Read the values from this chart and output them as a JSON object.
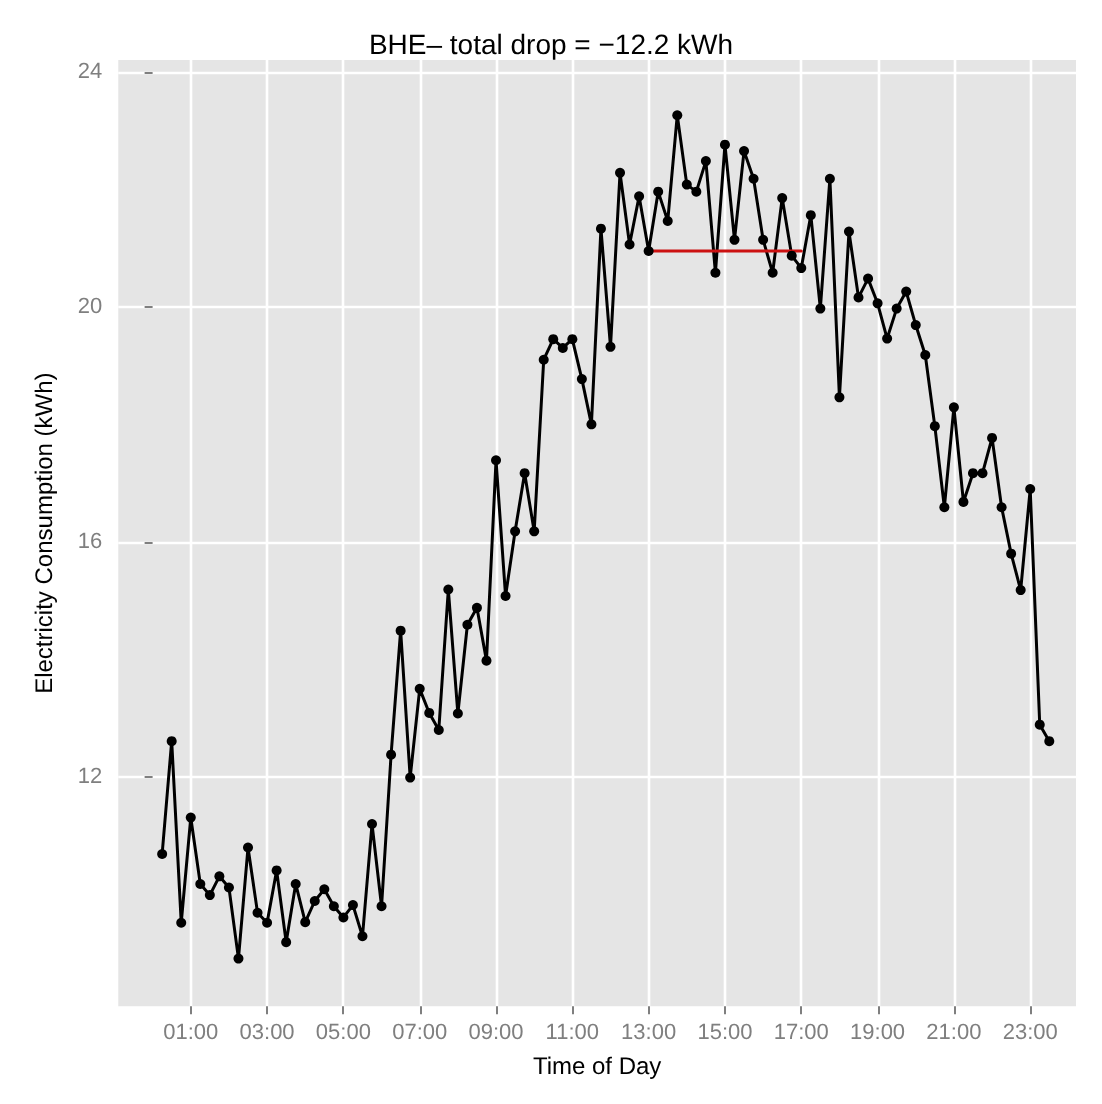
{
  "chart_data": {
    "type": "line",
    "title": "BHE– total drop = −12.2 kWh",
    "xlabel": "Time of Day",
    "ylabel": "Electricity Consumption (kWh)",
    "xlim": [
      -0.9,
      24.2
    ],
    "ylim": [
      8.1,
      24.2
    ],
    "xticks": [
      {
        "value": 1,
        "label": "01:00"
      },
      {
        "value": 3,
        "label": "03:00"
      },
      {
        "value": 5,
        "label": "05:00"
      },
      {
        "value": 7,
        "label": "07:00"
      },
      {
        "value": 9,
        "label": "09:00"
      },
      {
        "value": 11,
        "label": "11:00"
      },
      {
        "value": 13,
        "label": "13:00"
      },
      {
        "value": 15,
        "label": "15:00"
      },
      {
        "value": 17,
        "label": "17:00"
      },
      {
        "value": 19,
        "label": "19:00"
      },
      {
        "value": 21,
        "label": "21:00"
      },
      {
        "value": 23,
        "label": "23:00"
      }
    ],
    "yticks": [
      12,
      16,
      20,
      24
    ],
    "grid": true,
    "marker": "circle",
    "line_style": "solid",
    "series": [
      {
        "color": "#000000",
        "x": [
          0.25,
          0.5,
          0.75,
          1,
          1.25,
          1.5,
          1.75,
          2,
          2.25,
          2.5,
          2.75,
          3,
          3.25,
          3.5,
          3.75,
          4,
          4.25,
          4.5,
          4.75,
          5,
          5.25,
          5.5,
          5.75,
          6,
          6.25,
          6.5,
          6.75,
          7,
          7.25,
          7.5,
          7.75,
          8,
          8.25,
          8.5,
          8.75,
          9,
          9.25,
          9.5,
          9.75,
          10,
          10.25,
          10.5,
          10.75,
          11,
          11.25,
          11.5,
          11.75,
          12,
          12.25,
          12.5,
          12.75,
          13,
          13.25,
          13.5,
          13.75,
          14,
          14.25,
          14.5,
          14.75,
          15,
          15.25,
          15.5,
          15.75,
          16,
          16.25,
          16.5,
          16.75,
          17,
          17.25,
          17.5,
          17.75,
          18,
          18.25,
          18.5,
          18.75,
          19,
          19.25,
          19.5,
          19.75,
          20,
          20.25,
          20.5,
          20.75,
          21,
          21.25,
          21.5,
          21.75,
          22,
          22.25,
          22.5,
          22.75,
          23,
          23.25,
          23.5
        ],
        "values": [
          10.69,
          12.61,
          9.52,
          11.31,
          10.18,
          9.99,
          10.31,
          10.12,
          8.91,
          10.8,
          9.69,
          9.52,
          10.41,
          9.19,
          10.18,
          9.53,
          9.89,
          10.09,
          9.8,
          9.61,
          9.82,
          9.29,
          11.2,
          9.8,
          12.38,
          14.49,
          11.99,
          13.5,
          13.09,
          12.8,
          15.19,
          13.08,
          14.59,
          14.88,
          13.98,
          17.39,
          15.08,
          16.18,
          17.17,
          16.18,
          19.1,
          19.45,
          19.3,
          19.45,
          18.77,
          18.0,
          21.33,
          19.32,
          22.28,
          21.06,
          21.88,
          20.95,
          21.96,
          21.46,
          23.26,
          22.08,
          21.96,
          22.48,
          20.58,
          22.76,
          21.14,
          22.65,
          22.18,
          21.14,
          20.58,
          21.85,
          20.87,
          20.66,
          21.56,
          19.97,
          22.18,
          18.46,
          21.28,
          20.16,
          20.48,
          20.06,
          19.46,
          19.97,
          20.26,
          19.69,
          19.18,
          17.97,
          16.59,
          18.29,
          16.68,
          17.17,
          17.17,
          17.77,
          16.59,
          15.8,
          15.18,
          16.9,
          12.89,
          12.61
        ]
      },
      {
        "color": "#cc1111",
        "marker": "none",
        "x": [
          13,
          17
        ],
        "values": [
          20.95,
          20.95
        ]
      }
    ]
  }
}
